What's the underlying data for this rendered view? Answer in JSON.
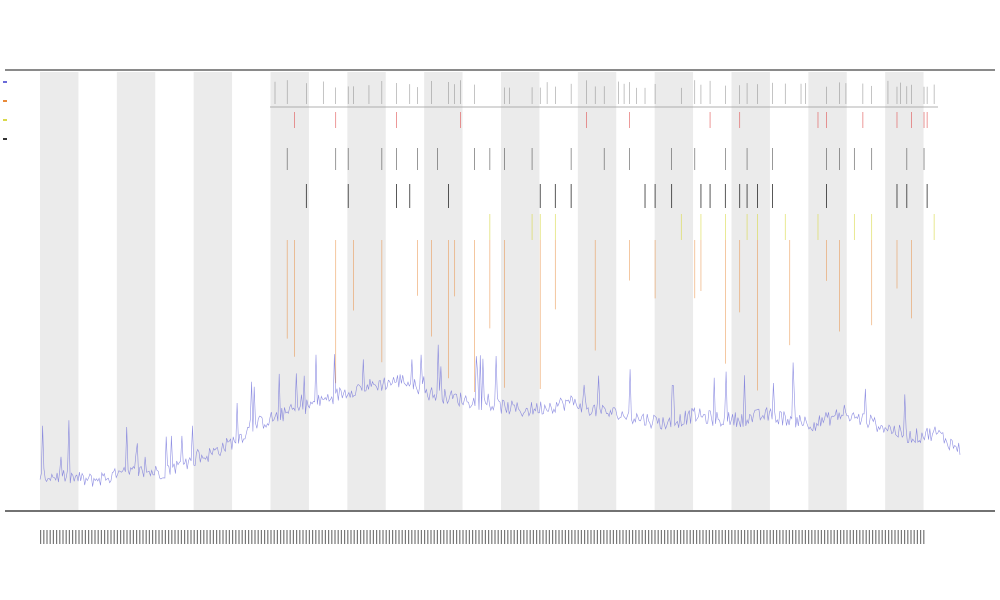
{
  "chart_data": {
    "type": "line",
    "title": "",
    "subtitle_lines": [
      "",
      ""
    ],
    "xlabel": "",
    "ylabel": "",
    "grid": false,
    "legend": {
      "placement": "top-left",
      "entries": [
        {
          "name": "",
          "color": "#6a6ad8"
        },
        {
          "name": "",
          "color": "#e88a3a"
        },
        {
          "name": "",
          "color": "#d9d94a"
        },
        {
          "name": "",
          "color": "#333333"
        }
      ]
    },
    "series": [
      {
        "name": "",
        "color": "#6a6ad8",
        "baseline_profile": [
          0.07,
          0.07,
          0.06,
          0.07,
          0.08,
          0.08,
          0.1,
          0.12,
          0.15,
          0.19,
          0.21,
          0.23,
          0.25,
          0.27,
          0.28,
          0.29,
          0.26,
          0.25,
          0.24,
          0.23,
          0.22,
          0.23,
          0.24,
          0.22,
          0.21,
          0.2,
          0.19,
          0.21,
          0.2,
          0.2,
          0.21,
          0.2,
          0.19,
          0.21,
          0.2,
          0.18,
          0.16,
          0.17,
          0.13
        ]
      }
    ],
    "event_tracks": [
      {
        "name": "",
        "color": "#888888"
      },
      {
        "name": "",
        "color": "#e05555"
      },
      {
        "name": "",
        "color": "#555555"
      },
      {
        "name": "",
        "color": "#111111"
      },
      {
        "name": "",
        "color": "#d9d94a"
      },
      {
        "name": "",
        "color": "#e88a3a"
      }
    ],
    "shaded_bands": 12,
    "ylim": [
      0,
      1
    ]
  },
  "colors": {
    "band": "#ebebeb",
    "axis": "#444444",
    "line": "#6a6ad8",
    "orange": "#e88a3a",
    "yellow": "#d9d94a",
    "red": "#e05555"
  }
}
